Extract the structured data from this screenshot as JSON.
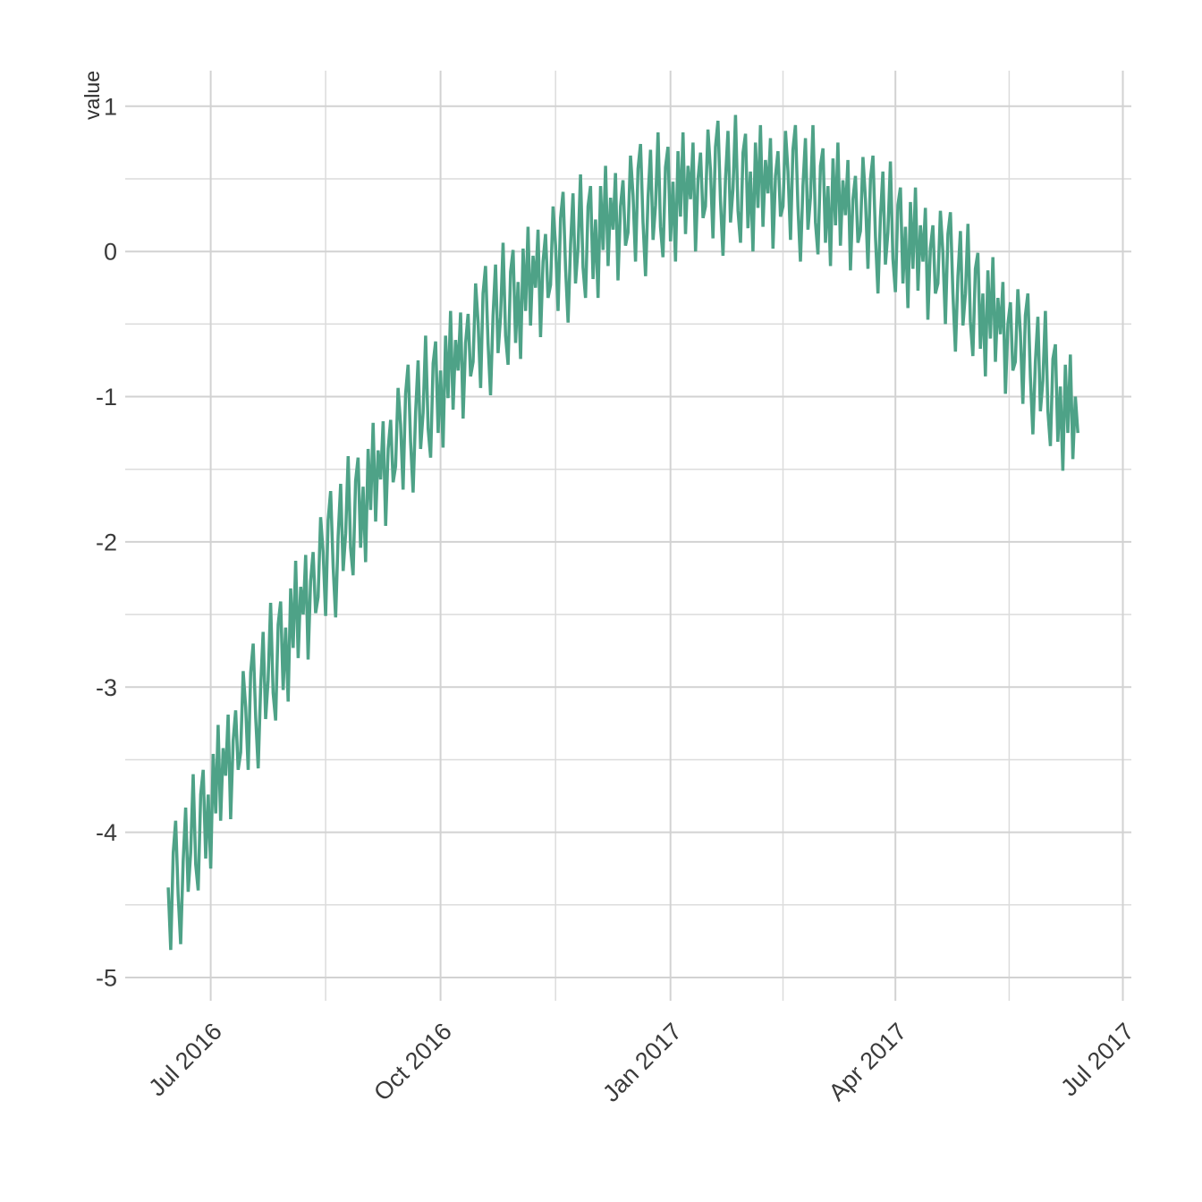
{
  "chart_data": {
    "type": "line",
    "title": "",
    "xlabel": "",
    "ylabel": "value",
    "x_start_date": "2016-06-14",
    "x_unit": "day",
    "xlim_days": [
      -17.2,
      385.4
    ],
    "ylim": [
      -5.16,
      1.245
    ],
    "y_ticks": [
      {
        "v": 1,
        "label": "1"
      },
      {
        "v": 0,
        "label": "0"
      },
      {
        "v": -1,
        "label": "-1"
      },
      {
        "v": -2,
        "label": "-2"
      },
      {
        "v": -3,
        "label": "-3"
      },
      {
        "v": -4,
        "label": "-4"
      },
      {
        "v": -5,
        "label": "-5"
      }
    ],
    "y_minor_ticks": [
      0.5,
      -0.5,
      -1.5,
      -2.5,
      -3.5,
      -4.5
    ],
    "x_ticks": [
      {
        "day": 17,
        "label": "Jul 2016"
      },
      {
        "day": 109,
        "label": "Oct 2016"
      },
      {
        "day": 201,
        "label": "Jan 2017"
      },
      {
        "day": 291,
        "label": "Apr 2017"
      },
      {
        "day": 382,
        "label": "Jul 2017"
      }
    ],
    "x_minor_ticks": [
      63,
      155,
      246,
      336.5
    ],
    "legend": "none",
    "grid": "on",
    "values": [
      -4.38,
      -4.81,
      -4.14,
      -3.92,
      -4.43,
      -4.77,
      -4.2,
      -3.83,
      -4.41,
      -4.14,
      -3.6,
      -4.22,
      -4.4,
      -3.74,
      -3.57,
      -4.18,
      -3.74,
      -4.25,
      -3.46,
      -3.87,
      -3.26,
      -3.92,
      -3.42,
      -3.61,
      -3.19,
      -3.91,
      -3.37,
      -3.16,
      -3.57,
      -3.45,
      -2.89,
      -3.14,
      -3.57,
      -2.9,
      -2.7,
      -3.21,
      -3.56,
      -2.99,
      -2.62,
      -3.22,
      -2.95,
      -2.42,
      -3.04,
      -3.23,
      -2.57,
      -2.41,
      -3.02,
      -2.59,
      -3.1,
      -2.32,
      -2.73,
      -2.13,
      -2.8,
      -2.31,
      -2.5,
      -2.09,
      -2.81,
      -2.27,
      -2.07,
      -2.49,
      -2.38,
      -1.83,
      -2.07,
      -2.51,
      -1.85,
      -1.65,
      -2.17,
      -2.52,
      -1.96,
      -1.6,
      -2.2,
      -1.94,
      -1.41,
      -2.04,
      -2.23,
      -1.58,
      -1.42,
      -2.04,
      -1.62,
      -2.14,
      -1.36,
      -1.78,
      -1.18,
      -1.86,
      -1.37,
      -1.57,
      -1.17,
      -1.89,
      -1.36,
      -1.16,
      -1.59,
      -1.48,
      -0.94,
      -1.19,
      -1.64,
      -0.98,
      -0.78,
      -1.31,
      -1.66,
      -1.11,
      -0.75,
      -1.36,
      -1.11,
      -0.58,
      -1.22,
      -1.42,
      -0.77,
      -0.62,
      -1.25,
      -0.82,
      -1.35,
      -0.58,
      -1.01,
      -0.41,
      -1.09,
      -0.61,
      -0.82,
      -0.42,
      -1.15,
      -0.63,
      -0.43,
      -0.86,
      -0.76,
      -0.22,
      -0.49,
      -0.94,
      -0.29,
      -0.1,
      -0.63,
      -0.99,
      -0.44,
      -0.09,
      -0.7,
      -0.45,
      0.06,
      -0.58,
      -0.78,
      -0.14,
      0.01,
      -0.63,
      -0.21,
      -0.74,
      0.02,
      -0.41,
      0.17,
      -0.51,
      -0.03,
      -0.25,
      0.15,
      -0.59,
      -0.07,
      0.12,
      -0.32,
      -0.23,
      0.31,
      0.04,
      -0.41,
      0.23,
      0.41,
      -0.12,
      -0.49,
      0.05,
      0.4,
      -0.22,
      0.02,
      0.53,
      -0.11,
      -0.32,
      0.31,
      0.45,
      -0.19,
      0.22,
      -0.32,
      0.45,
      0.01,
      0.59,
      -0.1,
      0.37,
      0.15,
      0.54,
      -0.2,
      0.31,
      0.49,
      0.04,
      0.13,
      0.66,
      0.39,
      -0.07,
      0.57,
      0.74,
      0.2,
      -0.17,
      0.37,
      0.7,
      0.08,
      0.32,
      0.82,
      0.17,
      -0.04,
      0.58,
      0.72,
      0.07,
      0.48,
      -0.07,
      0.69,
      0.24,
      0.82,
      0.12,
      0.59,
      0.36,
      0.75,
      0.0,
      0.5,
      0.68,
      0.23,
      0.31,
      0.84,
      0.56,
      0.09,
      0.72,
      0.9,
      0.35,
      -0.03,
      0.5,
      0.83,
      0.2,
      0.43,
      0.94,
      0.28,
      0.06,
      0.68,
      0.81,
      0.16,
      0.55,
      0.0,
      0.75,
      0.3,
      0.87,
      0.17,
      0.63,
      0.4,
      0.78,
      0.02,
      0.52,
      0.69,
      0.24,
      0.31,
      0.83,
      0.55,
      0.08,
      0.7,
      0.87,
      0.31,
      -0.07,
      0.45,
      0.78,
      0.15,
      0.37,
      0.87,
      0.2,
      -0.02,
      0.59,
      0.71,
      0.06,
      0.45,
      -0.1,
      0.64,
      0.18,
      0.75,
      0.04,
      0.49,
      0.25,
      0.63,
      -0.13,
      0.36,
      0.52,
      0.06,
      0.14,
      0.65,
      0.36,
      -0.12,
      0.5,
      0.66,
      0.1,
      -0.29,
      0.23,
      0.55,
      -0.09,
      0.13,
      0.62,
      -0.05,
      -0.28,
      0.32,
      0.44,
      -0.22,
      0.17,
      -0.39,
      0.34,
      -0.12,
      0.44,
      -0.27,
      0.18,
      -0.07,
      0.3,
      -0.47,
      0.02,
      0.18,
      -0.29,
      -0.22,
      0.28,
      -0.01,
      -0.5,
      0.12,
      0.27,
      -0.29,
      -0.69,
      -0.17,
      0.14,
      -0.51,
      -0.29,
      0.19,
      -0.48,
      -0.72,
      -0.12,
      -0.01,
      -0.67,
      -0.29,
      -0.86,
      -0.13,
      -0.6,
      -0.04,
      -0.76,
      -0.32,
      -0.57,
      -0.21,
      -0.98,
      -0.5,
      -0.35,
      -0.82,
      -0.76,
      -0.26,
      -0.56,
      -1.05,
      -0.44,
      -0.29,
      -0.86,
      -1.26,
      -0.76,
      -0.45,
      -1.1,
      -0.89,
      -0.41,
      -1.1,
      -1.34,
      -0.74,
      -0.64,
      -1.31,
      -0.93,
      -1.51,
      -0.78,
      -1.25,
      -0.71,
      -1.43,
      -1.0,
      -1.25
    ]
  },
  "style": {
    "background": "#ffffff",
    "line_color": "#4EA287",
    "grid_major_color": "#d2d2d2",
    "grid_minor_color": "#dcdcdc",
    "tick_text_color": "#3b3b3b",
    "axis_title_color": "#2f2f2f"
  }
}
